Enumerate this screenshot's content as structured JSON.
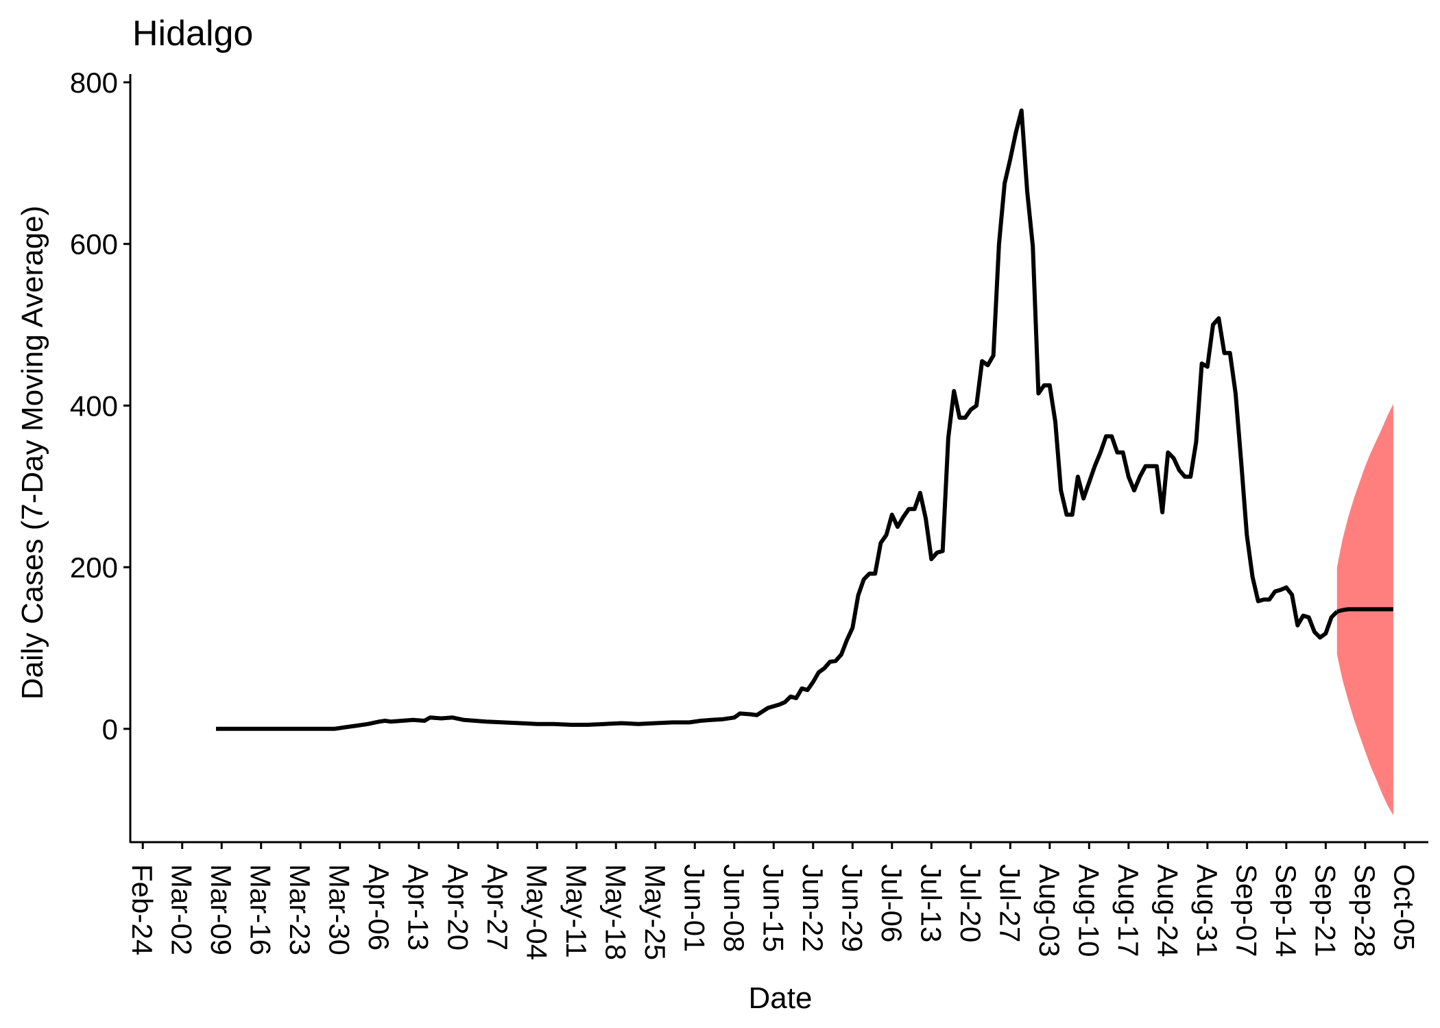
{
  "chart_data": {
    "type": "line",
    "title": "Hidalgo",
    "xlabel": "Date",
    "ylabel": "Daily Cases (7-Day Moving Average)",
    "xlim": [
      "2020-02-23",
      "2020-10-08"
    ],
    "ylim": [
      -130,
      800
    ],
    "y_ticks": [
      0,
      200,
      400,
      600,
      800
    ],
    "x_ticks": [
      "2020-02-24",
      "2020-03-02",
      "2020-03-09",
      "2020-03-16",
      "2020-03-23",
      "2020-03-30",
      "2020-04-06",
      "2020-04-13",
      "2020-04-20",
      "2020-04-27",
      "2020-05-04",
      "2020-05-11",
      "2020-05-18",
      "2020-05-25",
      "2020-06-01",
      "2020-06-08",
      "2020-06-15",
      "2020-06-22",
      "2020-06-29",
      "2020-07-06",
      "2020-07-13",
      "2020-07-20",
      "2020-07-27",
      "2020-08-03",
      "2020-08-10",
      "2020-08-17",
      "2020-08-24",
      "2020-08-31",
      "2020-09-07",
      "2020-09-14",
      "2020-09-21",
      "2020-09-28",
      "2020-10-05"
    ],
    "x_tick_labels": [
      "Feb-24",
      "Mar-02",
      "Mar-09",
      "Mar-16",
      "Mar-23",
      "Mar-30",
      "Apr-06",
      "Apr-13",
      "Apr-20",
      "Apr-27",
      "May-04",
      "May-11",
      "May-18",
      "May-25",
      "Jun-01",
      "Jun-08",
      "Jun-15",
      "Jun-22",
      "Jun-29",
      "Jul-06",
      "Jul-13",
      "Jul-20",
      "Jul-27",
      "Aug-03",
      "Aug-10",
      "Aug-17",
      "Aug-24",
      "Aug-31",
      "Sep-07",
      "Sep-14",
      "Sep-21",
      "Sep-28",
      "Oct-05"
    ],
    "grid": false,
    "legend": "none",
    "colors": {
      "observed_line": "#000000",
      "forecast_line": "#000000",
      "forecast_band": "#ff7f7f"
    },
    "series": [
      {
        "kind": "observed",
        "points": [
          [
            "2020-03-08",
            0
          ],
          [
            "2020-03-15",
            0
          ],
          [
            "2020-03-22",
            0
          ],
          [
            "2020-03-29",
            0
          ],
          [
            "2020-03-31",
            2
          ],
          [
            "2020-04-02",
            4
          ],
          [
            "2020-04-04",
            6
          ],
          [
            "2020-04-06",
            9
          ],
          [
            "2020-04-07",
            10
          ],
          [
            "2020-04-08",
            9
          ],
          [
            "2020-04-10",
            10
          ],
          [
            "2020-04-12",
            11
          ],
          [
            "2020-04-14",
            10
          ],
          [
            "2020-04-15",
            14
          ],
          [
            "2020-04-17",
            13
          ],
          [
            "2020-04-19",
            14
          ],
          [
            "2020-04-21",
            11
          ],
          [
            "2020-04-23",
            10
          ],
          [
            "2020-04-25",
            9
          ],
          [
            "2020-04-28",
            8
          ],
          [
            "2020-05-01",
            7
          ],
          [
            "2020-05-04",
            6
          ],
          [
            "2020-05-07",
            6
          ],
          [
            "2020-05-10",
            5
          ],
          [
            "2020-05-13",
            5
          ],
          [
            "2020-05-16",
            6
          ],
          [
            "2020-05-19",
            7
          ],
          [
            "2020-05-22",
            6
          ],
          [
            "2020-05-25",
            7
          ],
          [
            "2020-05-28",
            8
          ],
          [
            "2020-05-31",
            8
          ],
          [
            "2020-06-02",
            10
          ],
          [
            "2020-06-04",
            11
          ],
          [
            "2020-06-06",
            12
          ],
          [
            "2020-06-08",
            14
          ],
          [
            "2020-06-09",
            19
          ],
          [
            "2020-06-11",
            18
          ],
          [
            "2020-06-12",
            17
          ],
          [
            "2020-06-14",
            26
          ],
          [
            "2020-06-16",
            30
          ],
          [
            "2020-06-17",
            33
          ],
          [
            "2020-06-18",
            40
          ],
          [
            "2020-06-19",
            38
          ],
          [
            "2020-06-20",
            50
          ],
          [
            "2020-06-21",
            48
          ],
          [
            "2020-06-22",
            58
          ],
          [
            "2020-06-23",
            70
          ],
          [
            "2020-06-24",
            75
          ],
          [
            "2020-06-25",
            83
          ],
          [
            "2020-06-26",
            84
          ],
          [
            "2020-06-27",
            92
          ],
          [
            "2020-06-28",
            110
          ],
          [
            "2020-06-29",
            125
          ],
          [
            "2020-06-30",
            165
          ],
          [
            "2020-07-01",
            185
          ],
          [
            "2020-07-02",
            192
          ],
          [
            "2020-07-03",
            192
          ],
          [
            "2020-07-04",
            230
          ],
          [
            "2020-07-05",
            240
          ],
          [
            "2020-07-06",
            265
          ],
          [
            "2020-07-07",
            250
          ],
          [
            "2020-07-08",
            262
          ],
          [
            "2020-07-09",
            272
          ],
          [
            "2020-07-10",
            272
          ],
          [
            "2020-07-11",
            292
          ],
          [
            "2020-07-12",
            260
          ],
          [
            "2020-07-13",
            210
          ],
          [
            "2020-07-14",
            218
          ],
          [
            "2020-07-15",
            220
          ],
          [
            "2020-07-16",
            360
          ],
          [
            "2020-07-17",
            418
          ],
          [
            "2020-07-18",
            385
          ],
          [
            "2020-07-19",
            385
          ],
          [
            "2020-07-20",
            395
          ],
          [
            "2020-07-21",
            400
          ],
          [
            "2020-07-22",
            455
          ],
          [
            "2020-07-23",
            450
          ],
          [
            "2020-07-24",
            462
          ],
          [
            "2020-07-25",
            600
          ],
          [
            "2020-07-26",
            675
          ],
          [
            "2020-07-27",
            705
          ],
          [
            "2020-07-28",
            738
          ],
          [
            "2020-07-29",
            765
          ],
          [
            "2020-07-30",
            665
          ],
          [
            "2020-07-31",
            597
          ],
          [
            "2020-08-01",
            415
          ],
          [
            "2020-08-02",
            425
          ],
          [
            "2020-08-03",
            425
          ],
          [
            "2020-08-04",
            380
          ],
          [
            "2020-08-05",
            295
          ],
          [
            "2020-08-06",
            265
          ],
          [
            "2020-08-07",
            265
          ],
          [
            "2020-08-08",
            312
          ],
          [
            "2020-08-09",
            285
          ],
          [
            "2020-08-10",
            305
          ],
          [
            "2020-08-11",
            325
          ],
          [
            "2020-08-12",
            342
          ],
          [
            "2020-08-13",
            362
          ],
          [
            "2020-08-14",
            362
          ],
          [
            "2020-08-15",
            342
          ],
          [
            "2020-08-16",
            342
          ],
          [
            "2020-08-17",
            312
          ],
          [
            "2020-08-18",
            295
          ],
          [
            "2020-08-19",
            312
          ],
          [
            "2020-08-20",
            325
          ],
          [
            "2020-08-21",
            325
          ],
          [
            "2020-08-22",
            325
          ],
          [
            "2020-08-23",
            268
          ],
          [
            "2020-08-24",
            342
          ],
          [
            "2020-08-25",
            335
          ],
          [
            "2020-08-26",
            320
          ],
          [
            "2020-08-27",
            312
          ],
          [
            "2020-08-28",
            312
          ],
          [
            "2020-08-29",
            355
          ],
          [
            "2020-08-30",
            452
          ],
          [
            "2020-08-31",
            448
          ],
          [
            "2020-09-01",
            500
          ],
          [
            "2020-09-02",
            508
          ],
          [
            "2020-09-03",
            465
          ],
          [
            "2020-09-04",
            465
          ],
          [
            "2020-09-05",
            415
          ],
          [
            "2020-09-06",
            330
          ],
          [
            "2020-09-07",
            240
          ],
          [
            "2020-09-08",
            188
          ],
          [
            "2020-09-09",
            158
          ],
          [
            "2020-09-10",
            160
          ],
          [
            "2020-09-11",
            160
          ],
          [
            "2020-09-12",
            170
          ],
          [
            "2020-09-13",
            172
          ],
          [
            "2020-09-14",
            175
          ],
          [
            "2020-09-15",
            166
          ],
          [
            "2020-09-16",
            128
          ],
          [
            "2020-09-17",
            140
          ],
          [
            "2020-09-18",
            138
          ],
          [
            "2020-09-19",
            120
          ],
          [
            "2020-09-20",
            113
          ],
          [
            "2020-09-21",
            118
          ],
          [
            "2020-09-22",
            138
          ],
          [
            "2020-09-23",
            145
          ]
        ]
      },
      {
        "kind": "forecast",
        "points": [
          [
            "2020-09-23",
            145
          ],
          [
            "2020-09-24",
            147
          ],
          [
            "2020-09-25",
            148
          ],
          [
            "2020-09-27",
            148
          ],
          [
            "2020-09-29",
            148
          ],
          [
            "2020-10-01",
            148
          ],
          [
            "2020-10-03",
            148
          ]
        ],
        "lower": [
          [
            "2020-09-23",
            92
          ],
          [
            "2020-09-24",
            60
          ],
          [
            "2020-09-25",
            35
          ],
          [
            "2020-09-26",
            12
          ],
          [
            "2020-09-27",
            -8
          ],
          [
            "2020-09-28",
            -28
          ],
          [
            "2020-09-29",
            -47
          ],
          [
            "2020-09-30",
            -63
          ],
          [
            "2020-10-01",
            -80
          ],
          [
            "2020-10-02",
            -95
          ],
          [
            "2020-10-03",
            -107
          ]
        ],
        "upper": [
          [
            "2020-09-23",
            200
          ],
          [
            "2020-09-24",
            235
          ],
          [
            "2020-09-25",
            262
          ],
          [
            "2020-09-26",
            285
          ],
          [
            "2020-09-27",
            305
          ],
          [
            "2020-09-28",
            325
          ],
          [
            "2020-09-29",
            342
          ],
          [
            "2020-09-30",
            357
          ],
          [
            "2020-10-01",
            372
          ],
          [
            "2020-10-02",
            388
          ],
          [
            "2020-10-03",
            402
          ]
        ]
      }
    ]
  }
}
